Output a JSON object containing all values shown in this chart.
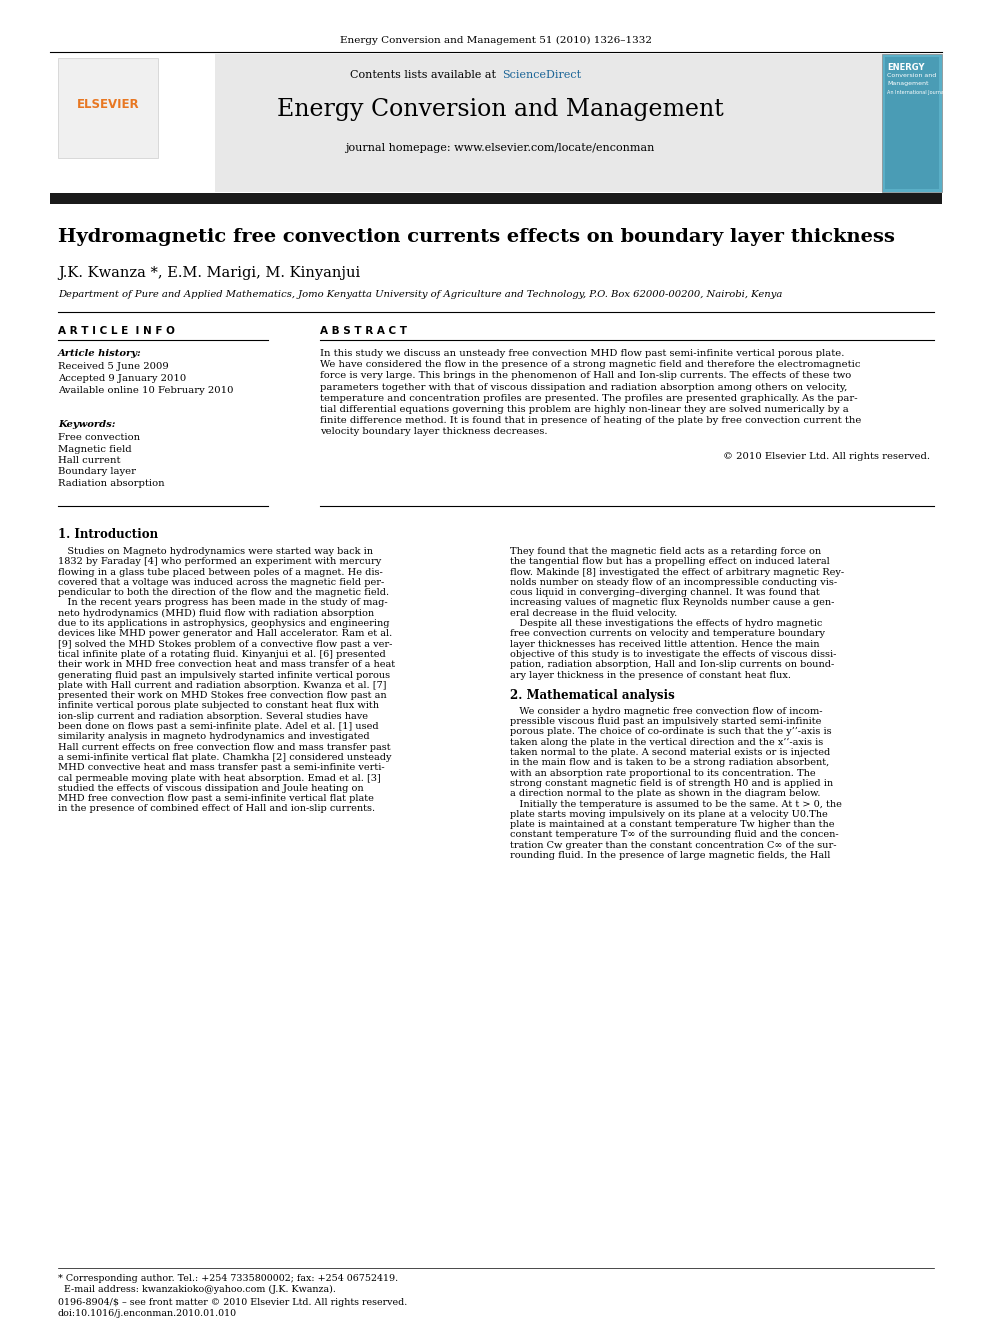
{
  "journal_ref": "Energy Conversion and Management 51 (2010) 1326–1332",
  "contents_text": "Contents lists available at ",
  "sciencedirect_text": "ScienceDirect",
  "journal_title": "Energy Conversion and Management",
  "journal_homepage": "journal homepage: www.elsevier.com/locate/enconman",
  "paper_title": "Hydromagnetic free convection currents effects on boundary layer thickness",
  "authors": "J.K. Kwanza *, E.M. Marigi, M. Kinyanjui",
  "affiliation": "Department of Pure and Applied Mathematics, Jomo Kenyatta University of Agriculture and Technology, P.O. Box 62000-00200, Nairobi, Kenya",
  "article_info_header": "A R T I C L E  I N F O",
  "abstract_header": "A B S T R A C T",
  "article_history_label": "Article history:",
  "received": "Received 5 June 2009",
  "accepted": "Accepted 9 January 2010",
  "available": "Available online 10 February 2010",
  "keywords_label": "Keywords:",
  "keywords": [
    "Free convection",
    "Magnetic field",
    "Hall current",
    "Boundary layer",
    "Radiation absorption"
  ],
  "abstract_lines": [
    "In this study we discuss an unsteady free convection MHD flow past semi-infinite vertical porous plate.",
    "We have considered the flow in the presence of a strong magnetic field and therefore the electromagnetic",
    "force is very large. This brings in the phenomenon of Hall and Ion-slip currents. The effects of these two",
    "parameters together with that of viscous dissipation and radiation absorption among others on velocity,",
    "temperature and concentration profiles are presented. The profiles are presented graphically. As the par-",
    "tial differential equations governing this problem are highly non-linear they are solved numerically by a",
    "finite difference method. It is found that in presence of heating of the plate by free convection current the",
    "velocity boundary layer thickness decreases."
  ],
  "copyright": "© 2010 Elsevier Ltd. All rights reserved.",
  "section1_title": "1. Introduction",
  "section2_title": "2. Mathematical analysis",
  "col1_lines": [
    "   Studies on Magneto hydrodynamics were started way back in",
    "1832 by Faraday [4] who performed an experiment with mercury",
    "flowing in a glass tube placed between poles of a magnet. He dis-",
    "covered that a voltage was induced across the magnetic field per-",
    "pendicular to both the direction of the flow and the magnetic field.",
    "   In the recent years progress has been made in the study of mag-",
    "neto hydrodynamics (MHD) fluid flow with radiation absorption",
    "due to its applications in astrophysics, geophysics and engineering",
    "devices like MHD power generator and Hall accelerator. Ram et al.",
    "[9] solved the MHD Stokes problem of a convective flow past a ver-",
    "tical infinite plate of a rotating fluid. Kinyanjui et al. [6] presented",
    "their work in MHD free convection heat and mass transfer of a heat",
    "generating fluid past an impulsively started infinite vertical porous",
    "plate with Hall current and radiation absorption. Kwanza et al. [7]",
    "presented their work on MHD Stokes free convection flow past an",
    "infinite vertical porous plate subjected to constant heat flux with",
    "ion-slip current and radiation absorption. Several studies have",
    "been done on flows past a semi-infinite plate. Adel et al. [1] used",
    "similarity analysis in magneto hydrodynamics and investigated",
    "Hall current effects on free convection flow and mass transfer past",
    "a semi-infinite vertical flat plate. Chamkha [2] considered unsteady",
    "MHD convective heat and mass transfer past a semi-infinite verti-",
    "cal permeable moving plate with heat absorption. Emad et al. [3]",
    "studied the effects of viscous dissipation and Joule heating on",
    "MHD free convection flow past a semi-infinite vertical flat plate",
    "in the presence of combined effect of Hall and ion-slip currents."
  ],
  "col2_lines_part1": [
    "They found that the magnetic field acts as a retarding force on",
    "the tangential flow but has a propelling effect on induced lateral",
    "flow. Makinde [8] investigated the effect of arbitrary magnetic Rey-",
    "nolds number on steady flow of an incompressible conducting vis-",
    "cous liquid in converging–diverging channel. It was found that",
    "increasing values of magnetic flux Reynolds number cause a gen-",
    "eral decrease in the fluid velocity.",
    "   Despite all these investigations the effects of hydro magnetic",
    "free convection currents on velocity and temperature boundary",
    "layer thicknesses has received little attention. Hence the main",
    "objective of this study is to investigate the effects of viscous dissi-",
    "pation, radiation absorption, Hall and Ion-slip currents on bound-",
    "ary layer thickness in the presence of constant heat flux."
  ],
  "col2_lines_part2": [
    "   We consider a hydro magnetic free convection flow of incom-",
    "pressible viscous fluid past an impulsively started semi-infinite",
    "porous plate. The choice of co-ordinate is such that the y’’-axis is",
    "taken along the plate in the vertical direction and the x’’-axis is",
    "taken normal to the plate. A second material exists or is injected",
    "in the main flow and is taken to be a strong radiation absorbent,",
    "with an absorption rate proportional to its concentration. The",
    "strong constant magnetic field is of strength H0 and is applied in",
    "a direction normal to the plate as shown in the diagram below.",
    "   Initially the temperature is assumed to be the same. At t > 0, the",
    "plate starts moving impulsively on its plane at a velocity U0.The",
    "plate is maintained at a constant temperature Tw higher than the",
    "constant temperature T∞ of the surrounding fluid and the concen-",
    "tration Cw greater than the constant concentration C∞ of the sur-",
    "rounding fluid. In the presence of large magnetic fields, the Hall"
  ],
  "footnote_line1": "* Corresponding author. Tel.: +254 7335800002; fax: +254 06752419.",
  "footnote_line2": "  E-mail address: kwanzakioko@yahoo.com (J.K. Kwanza).",
  "footer_line1": "0196-8904/$ – see front matter © 2010 Elsevier Ltd. All rights reserved.",
  "footer_line2": "doi:10.1016/j.enconman.2010.01.010",
  "bg_color": "#ffffff",
  "header_bg": "#e8e8e8",
  "black_bar_color": "#1a1a1a",
  "elsevier_orange": "#e87722",
  "science_direct_blue": "#1a6496"
}
